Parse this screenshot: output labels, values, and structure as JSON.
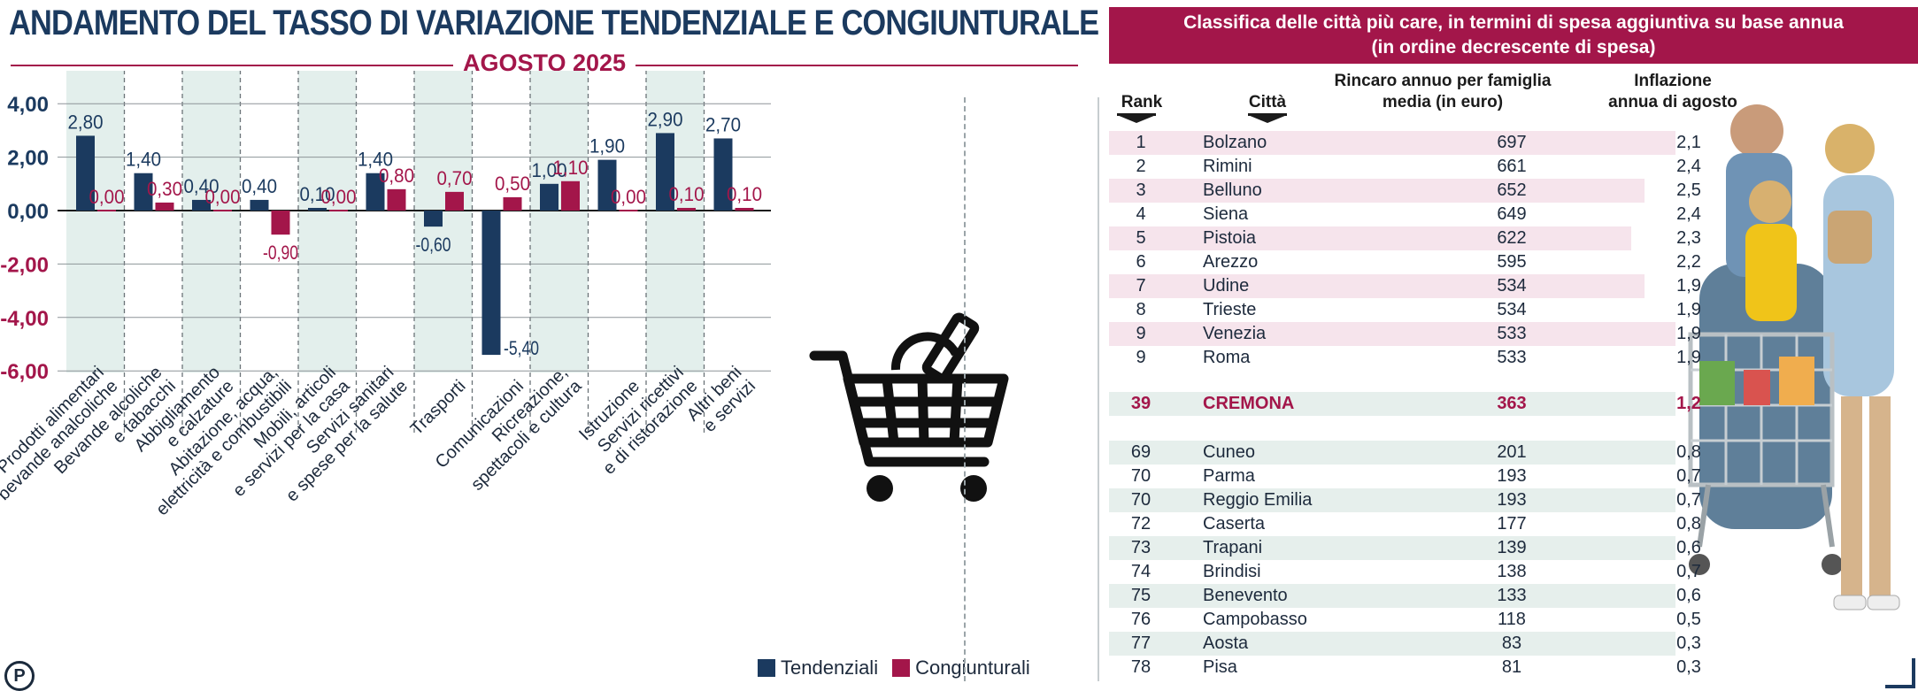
{
  "chart_title": "ANDAMENTO DEL TASSO DI VARIAZIONE TENDENZIALE E CONGIUNTURALE",
  "chart_subtitle": "AGOSTO 2025",
  "legend": [
    {
      "label": "Tendenziali",
      "color": "#1b3a5f"
    },
    {
      "label": "Congiunturali",
      "color": "#a3164a"
    }
  ],
  "chart_data": {
    "type": "bar",
    "categories": [
      [
        "Prodotti alimentari",
        "e bevande analcoliche"
      ],
      [
        "Bevande alcoliche",
        "e tabacchi"
      ],
      [
        "Abbigliamento",
        "e calzature"
      ],
      [
        "Abitazione, acqua,",
        "elettricità e combustibili"
      ],
      [
        "Mobili, articoli",
        "e servizi per la casa"
      ],
      [
        "Servizi sanitari",
        "e spese per la salute"
      ],
      [
        "Trasporti"
      ],
      [
        "Comunicazioni"
      ],
      [
        "Ricreazione,",
        "spettacoli e cultura"
      ],
      [
        "Istruzione"
      ],
      [
        "Servizi ricettivi",
        "e di ristorazione"
      ],
      [
        "Altri beni",
        "e servizi"
      ]
    ],
    "series": [
      {
        "name": "Tendenziali",
        "values": [
          2.8,
          1.4,
          0.4,
          0.4,
          0.1,
          1.4,
          -0.6,
          -5.4,
          1.0,
          1.9,
          2.9,
          2.7
        ],
        "labels": [
          "2,80",
          "1,40",
          "0,40",
          "0,40",
          "0,10",
          "1,40",
          "-0,60",
          "-5,40",
          "1,00",
          "1,90",
          "2,90",
          "2,70"
        ]
      },
      {
        "name": "Congiunturali",
        "values": [
          0.0,
          0.3,
          0.0,
          -0.9,
          0.0,
          0.8,
          0.7,
          0.5,
          1.1,
          0.0,
          0.1,
          0.1
        ],
        "labels": [
          "0,00",
          "0,30",
          "0,00",
          "-0,90",
          "0,00",
          "0,80",
          "0,70",
          "0,50",
          "1,10",
          "0,00",
          "0,10",
          "0,10"
        ]
      }
    ],
    "yticks": [
      {
        "value": 4,
        "label": "4,00"
      },
      {
        "value": 2,
        "label": "2,00"
      },
      {
        "value": 0,
        "label": "0,00"
      },
      {
        "value": -2,
        "label": "-2,00"
      },
      {
        "value": -4,
        "label": "-4,00"
      },
      {
        "value": -6,
        "label": "-6,00"
      }
    ],
    "ylim": [
      -6,
      5.5
    ],
    "xlabel": "",
    "ylabel": "",
    "grid": true,
    "legend_position": "bottom-right"
  },
  "table": {
    "title_line1": "Classifica delle città più care, in termini di spesa aggiuntiva su base annua",
    "title_line2": "(in ordine decrescente di spesa)",
    "col_rank": "Rank",
    "col_city": "Città",
    "col_amount_1": "Rincaro annuo per famiglia",
    "col_amount_2": "media (in euro)",
    "col_infl_1": "Inflazione",
    "col_infl_2": "annua di agosto",
    "rows_top": [
      {
        "rank": "1",
        "city": "Bolzano",
        "amount": "697",
        "infl": "2,1"
      },
      {
        "rank": "2",
        "city": "Rimini",
        "amount": "661",
        "infl": "2,4"
      },
      {
        "rank": "3",
        "city": "Belluno",
        "amount": "652",
        "infl": "2,5"
      },
      {
        "rank": "4",
        "city": "Siena",
        "amount": "649",
        "infl": "2,4"
      },
      {
        "rank": "5",
        "city": "Pistoia",
        "amount": "622",
        "infl": "2,3"
      },
      {
        "rank": "6",
        "city": "Arezzo",
        "amount": "595",
        "infl": "2,2"
      },
      {
        "rank": "7",
        "city": "Udine",
        "amount": "534",
        "infl": "1,9"
      },
      {
        "rank": "8",
        "city": "Trieste",
        "amount": "534",
        "infl": "1,9"
      },
      {
        "rank": "9",
        "city": "Venezia",
        "amount": "533",
        "infl": "1,9"
      },
      {
        "rank": "9",
        "city": "Roma",
        "amount": "533",
        "infl": "1,9"
      }
    ],
    "row_highlight": {
      "rank": "39",
      "city": "CREMONA",
      "amount": "363",
      "infl": "1,2"
    },
    "rows_bottom": [
      {
        "rank": "69",
        "city": "Cuneo",
        "amount": "201",
        "infl": "0,8"
      },
      {
        "rank": "70",
        "city": "Parma",
        "amount": "193",
        "infl": "0,7"
      },
      {
        "rank": "70",
        "city": "Reggio Emilia",
        "amount": "193",
        "infl": "0,7"
      },
      {
        "rank": "72",
        "city": "Caserta",
        "amount": "177",
        "infl": "0,8"
      },
      {
        "rank": "73",
        "city": "Trapani",
        "amount": "139",
        "infl": "0,6"
      },
      {
        "rank": "74",
        "city": "Brindisi",
        "amount": "138",
        "infl": "0,7"
      },
      {
        "rank": "75",
        "city": "Benevento",
        "amount": "133",
        "infl": "0,6"
      },
      {
        "rank": "76",
        "city": "Campobasso",
        "amount": "118",
        "infl": "0,5"
      },
      {
        "rank": "77",
        "city": "Aosta",
        "amount": "83",
        "infl": "0,3"
      },
      {
        "rank": "78",
        "city": "Pisa",
        "amount": "81",
        "infl": "0,3"
      }
    ]
  },
  "logo_text": "P",
  "colors": {
    "navy": "#1b3a5f",
    "crimson": "#a3164a",
    "band": "#e3efec",
    "row_pink": "#f6e4ec"
  }
}
